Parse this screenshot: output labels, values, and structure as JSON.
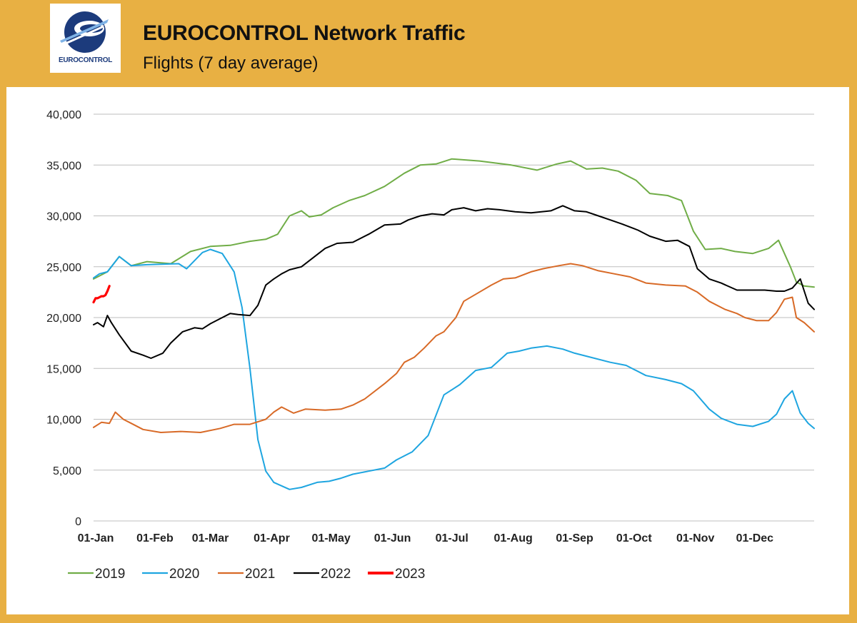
{
  "header": {
    "logo_text": "EUROCONTROL",
    "title": "EUROCONTROL Network Traffic",
    "subtitle": "Flights (7 day average)"
  },
  "colors": {
    "frame": "#e8b043",
    "s2019": "#70ad47",
    "s2020": "#1ea5e0",
    "s2021": "#d86a27",
    "s2022": "#000000",
    "s2023": "#ff0000"
  },
  "chart_data": {
    "type": "line",
    "title": "EUROCONTROL Network Traffic",
    "subtitle": "Flights (7 day average)",
    "xlabel": "",
    "ylabel": "",
    "xlim": [
      1,
      365
    ],
    "ylim": [
      0,
      40000
    ],
    "grid": true,
    "legend_position": "bottom-left",
    "y_ticks": [
      0,
      5000,
      10000,
      15000,
      20000,
      25000,
      30000,
      35000,
      40000
    ],
    "y_tick_labels": [
      "0",
      "5,000",
      "10,000",
      "15,000",
      "20,000",
      "25,000",
      "30,000",
      "35,000",
      "40,000"
    ],
    "x_ticks": [
      1,
      32,
      60,
      91,
      121,
      152,
      182,
      213,
      244,
      274,
      305,
      335
    ],
    "x_tick_labels": [
      "01-Jan",
      "01-Feb",
      "01-Mar",
      "01-Apr",
      "01-May",
      "01-Jun",
      "01-Jul",
      "01-Aug",
      "01-Sep",
      "01-Oct",
      "01-Nov",
      "01-Dec"
    ],
    "series": [
      {
        "name": "2019",
        "color": "#70ad47",
        "x": [
          1,
          8,
          14,
          20,
          28,
          40,
          50,
          60,
          70,
          80,
          88,
          94,
          100,
          106,
          110,
          116,
          122,
          130,
          138,
          148,
          158,
          166,
          174,
          182,
          196,
          212,
          225,
          235,
          242,
          250,
          258,
          266,
          275,
          282,
          291,
          298,
          304,
          310,
          318,
          325,
          334,
          342,
          347,
          353,
          356,
          360,
          365
        ],
        "y": [
          23800,
          24500,
          26000,
          25100,
          25500,
          25300,
          26500,
          27000,
          27100,
          27500,
          27700,
          28200,
          30000,
          30500,
          29900,
          30100,
          30800,
          31500,
          32000,
          32900,
          34200,
          35000,
          35100,
          35600,
          35400,
          35000,
          34500,
          35100,
          35400,
          34600,
          34700,
          34400,
          33500,
          32200,
          32000,
          31500,
          28500,
          26700,
          26800,
          26500,
          26300,
          26800,
          27600,
          25000,
          23500,
          23100,
          23000
        ]
      },
      {
        "name": "2020",
        "color": "#1ea5e0",
        "x": [
          1,
          4,
          8,
          14,
          20,
          28,
          44,
          48,
          52,
          56,
          60,
          66,
          72,
          76,
          80,
          84,
          88,
          92,
          100,
          106,
          114,
          120,
          126,
          132,
          140,
          148,
          154,
          162,
          170,
          178,
          186,
          194,
          202,
          210,
          216,
          222,
          230,
          238,
          244,
          250,
          262,
          270,
          280,
          290,
          298,
          304,
          312,
          318,
          326,
          334,
          342,
          346,
          350,
          354,
          358,
          362,
          365
        ],
        "y": [
          23900,
          24300,
          24500,
          26000,
          25100,
          25200,
          25300,
          24800,
          25600,
          26400,
          26700,
          26300,
          24500,
          21000,
          15000,
          8000,
          4900,
          3800,
          3100,
          3300,
          3800,
          3900,
          4200,
          4600,
          4900,
          5200,
          6000,
          6800,
          8400,
          12400,
          13400,
          14800,
          15100,
          16500,
          16700,
          17000,
          17200,
          16900,
          16500,
          16200,
          15600,
          15300,
          14300,
          13900,
          13500,
          12800,
          11000,
          10100,
          9500,
          9300,
          9800,
          10500,
          12000,
          12800,
          10600,
          9600,
          9100
        ]
      },
      {
        "name": "2021",
        "color": "#d86a27",
        "x": [
          1,
          5,
          9,
          12,
          16,
          20,
          26,
          35,
          45,
          55,
          65,
          72,
          80,
          88,
          92,
          96,
          102,
          108,
          118,
          126,
          132,
          138,
          148,
          154,
          158,
          163,
          168,
          174,
          178,
          184,
          188,
          195,
          202,
          208,
          214,
          222,
          228,
          236,
          242,
          248,
          256,
          264,
          272,
          280,
          290,
          300,
          306,
          312,
          320,
          326,
          330,
          336,
          342,
          346,
          350,
          354,
          356,
          360,
          365
        ],
        "y": [
          9200,
          9700,
          9600,
          10700,
          10000,
          9600,
          9000,
          8700,
          8800,
          8700,
          9100,
          9500,
          9500,
          10000,
          10700,
          11200,
          10600,
          11000,
          10900,
          11000,
          11400,
          12000,
          13500,
          14500,
          15600,
          16100,
          17000,
          18200,
          18600,
          20000,
          21600,
          22400,
          23200,
          23800,
          23900,
          24500,
          24800,
          25100,
          25300,
          25100,
          24600,
          24300,
          24000,
          23400,
          23200,
          23100,
          22500,
          21600,
          20800,
          20400,
          20000,
          19700,
          19700,
          20500,
          21800,
          22000,
          20000,
          19500,
          18600
        ]
      },
      {
        "name": "2022",
        "color": "#000000",
        "x": [
          1,
          3,
          6,
          8,
          10,
          14,
          20,
          26,
          30,
          36,
          40,
          46,
          52,
          56,
          60,
          66,
          70,
          74,
          80,
          84,
          88,
          92,
          96,
          100,
          106,
          112,
          118,
          124,
          132,
          140,
          148,
          156,
          160,
          166,
          172,
          178,
          182,
          188,
          194,
          200,
          206,
          214,
          222,
          232,
          238,
          244,
          250,
          256,
          262,
          268,
          276,
          282,
          290,
          296,
          302,
          306,
          312,
          318,
          326,
          334,
          340,
          346,
          350,
          354,
          358,
          362,
          365
        ],
        "y": [
          19300,
          19500,
          19100,
          20200,
          19500,
          18300,
          16700,
          16300,
          16000,
          16500,
          17500,
          18600,
          19000,
          18900,
          19400,
          20000,
          20400,
          20300,
          20200,
          21200,
          23200,
          23800,
          24300,
          24700,
          25000,
          25900,
          26800,
          27300,
          27400,
          28200,
          29100,
          29200,
          29600,
          30000,
          30200,
          30100,
          30600,
          30800,
          30500,
          30700,
          30600,
          30400,
          30300,
          30500,
          31000,
          30500,
          30400,
          30000,
          29600,
          29200,
          28600,
          28000,
          27500,
          27600,
          27000,
          24800,
          23800,
          23400,
          22700,
          22700,
          22700,
          22600,
          22600,
          22900,
          23800,
          21400,
          20800
        ]
      },
      {
        "name": "2023",
        "color": "#ff0000",
        "x": [
          1,
          2,
          3,
          4,
          5,
          6,
          7,
          8,
          9
        ],
        "y": [
          21500,
          21900,
          21900,
          22000,
          22100,
          22100,
          22200,
          22600,
          23100
        ]
      }
    ]
  }
}
